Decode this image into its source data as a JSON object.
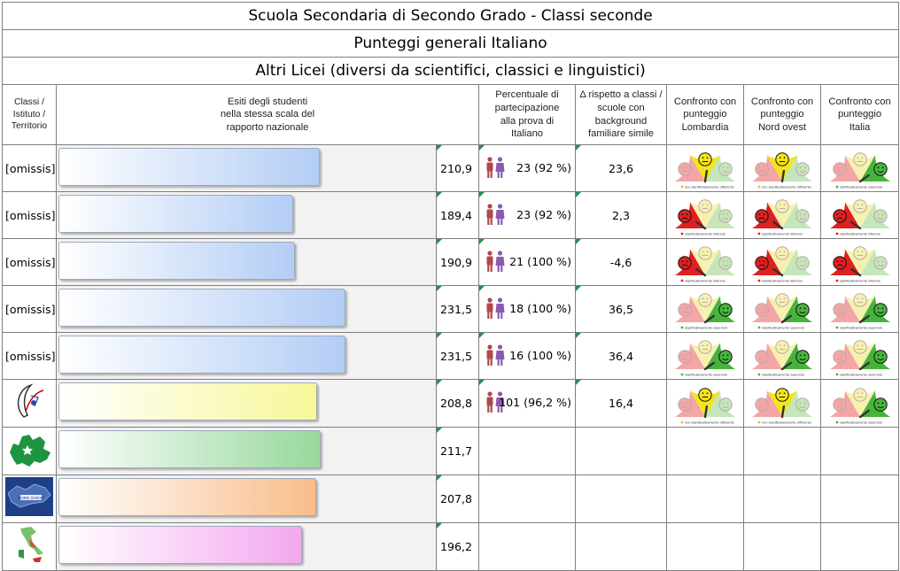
{
  "header": {
    "title1": "Scuola Secondaria di Secondo Grado - Classi seconde",
    "title2": "Punteggi generali Italiano",
    "title3": "Altri Licei (diversi da scientifici, classici e linguistici)"
  },
  "columns": {
    "c1": [
      "Classi /",
      "Istituto /",
      "Territorio"
    ],
    "c2": [
      "Esiti degli studenti",
      "nella stessa scala del",
      "rapporto nazionale"
    ],
    "c3": [
      "Percentuale di",
      "partecipazione",
      "alla prova di",
      "Italiano"
    ],
    "c4": [
      "Δ rispetto a classi /",
      "scuole con",
      "background",
      "familiare simile"
    ],
    "c5": [
      "Confronto con",
      "punteggio",
      "Lombardia"
    ],
    "c6": [
      "Confronto con",
      "punteggio",
      "Nord ovest"
    ],
    "c7": [
      "Confronto con",
      "punteggio",
      "Italia"
    ]
  },
  "gauge_labels": {
    "nonsig": "non significativamente differente",
    "inf": "significativamente inferiore",
    "sup": "significativamente superiore"
  },
  "colors": {
    "class_bar": "#b3cdf5",
    "school_bar": "#f7f79a",
    "lombardia_bar": "#97d89d",
    "nordovest_bar": "#f9bd8a",
    "italia_bar": "#f4a8f0"
  },
  "rows": [
    {
      "label": "[omissis]",
      "score": "210,9",
      "participation": "23 (92 %)",
      "delta": "23,6",
      "comparisons": [
        "nonsig",
        "nonsig",
        "sup"
      ]
    },
    {
      "label": "[omissis]",
      "score": "189,4",
      "participation": "23 (92 %)",
      "delta": "2,3",
      "comparisons": [
        "inf",
        "inf",
        "inf"
      ]
    },
    {
      "label": "[omissis]",
      "score": "190,9",
      "participation": "21 (100 %)",
      "delta": "-4,6",
      "comparisons": [
        "inf",
        "inf",
        "inf"
      ]
    },
    {
      "label": "[omissis]",
      "score": "231,5",
      "participation": "18 (100 %)",
      "delta": "36,5",
      "comparisons": [
        "sup",
        "sup",
        "sup"
      ]
    },
    {
      "label": "[omissis]",
      "score": "231,5",
      "participation": "16 (100 %)",
      "delta": "36,4",
      "comparisons": [
        "sup",
        "sup",
        "sup"
      ]
    },
    {
      "icon": "school-logo-icon",
      "score": "208,8",
      "participation": "101 (96,2 %)",
      "delta": "16,4",
      "comparisons": [
        "nonsig",
        "nonsig",
        "sup"
      ]
    },
    {
      "icon": "lombardia-map-icon",
      "score": "211,7"
    },
    {
      "icon": "nord-ovest-map-icon",
      "score": "207,8",
      "icon_text": "NORD OVEST"
    },
    {
      "icon": "italia-map-icon",
      "score": "196,2"
    }
  ],
  "chart_data": {
    "type": "bar",
    "categories": [
      "[omissis]",
      "[omissis]",
      "[omissis]",
      "[omissis]",
      "[omissis]",
      "",
      "",
      "",
      ""
    ],
    "values": [
      210.9,
      189.4,
      190.9,
      231.5,
      231.5,
      208.8,
      211.7,
      207.8,
      196.2
    ],
    "xlim": [
      0,
      300
    ]
  }
}
